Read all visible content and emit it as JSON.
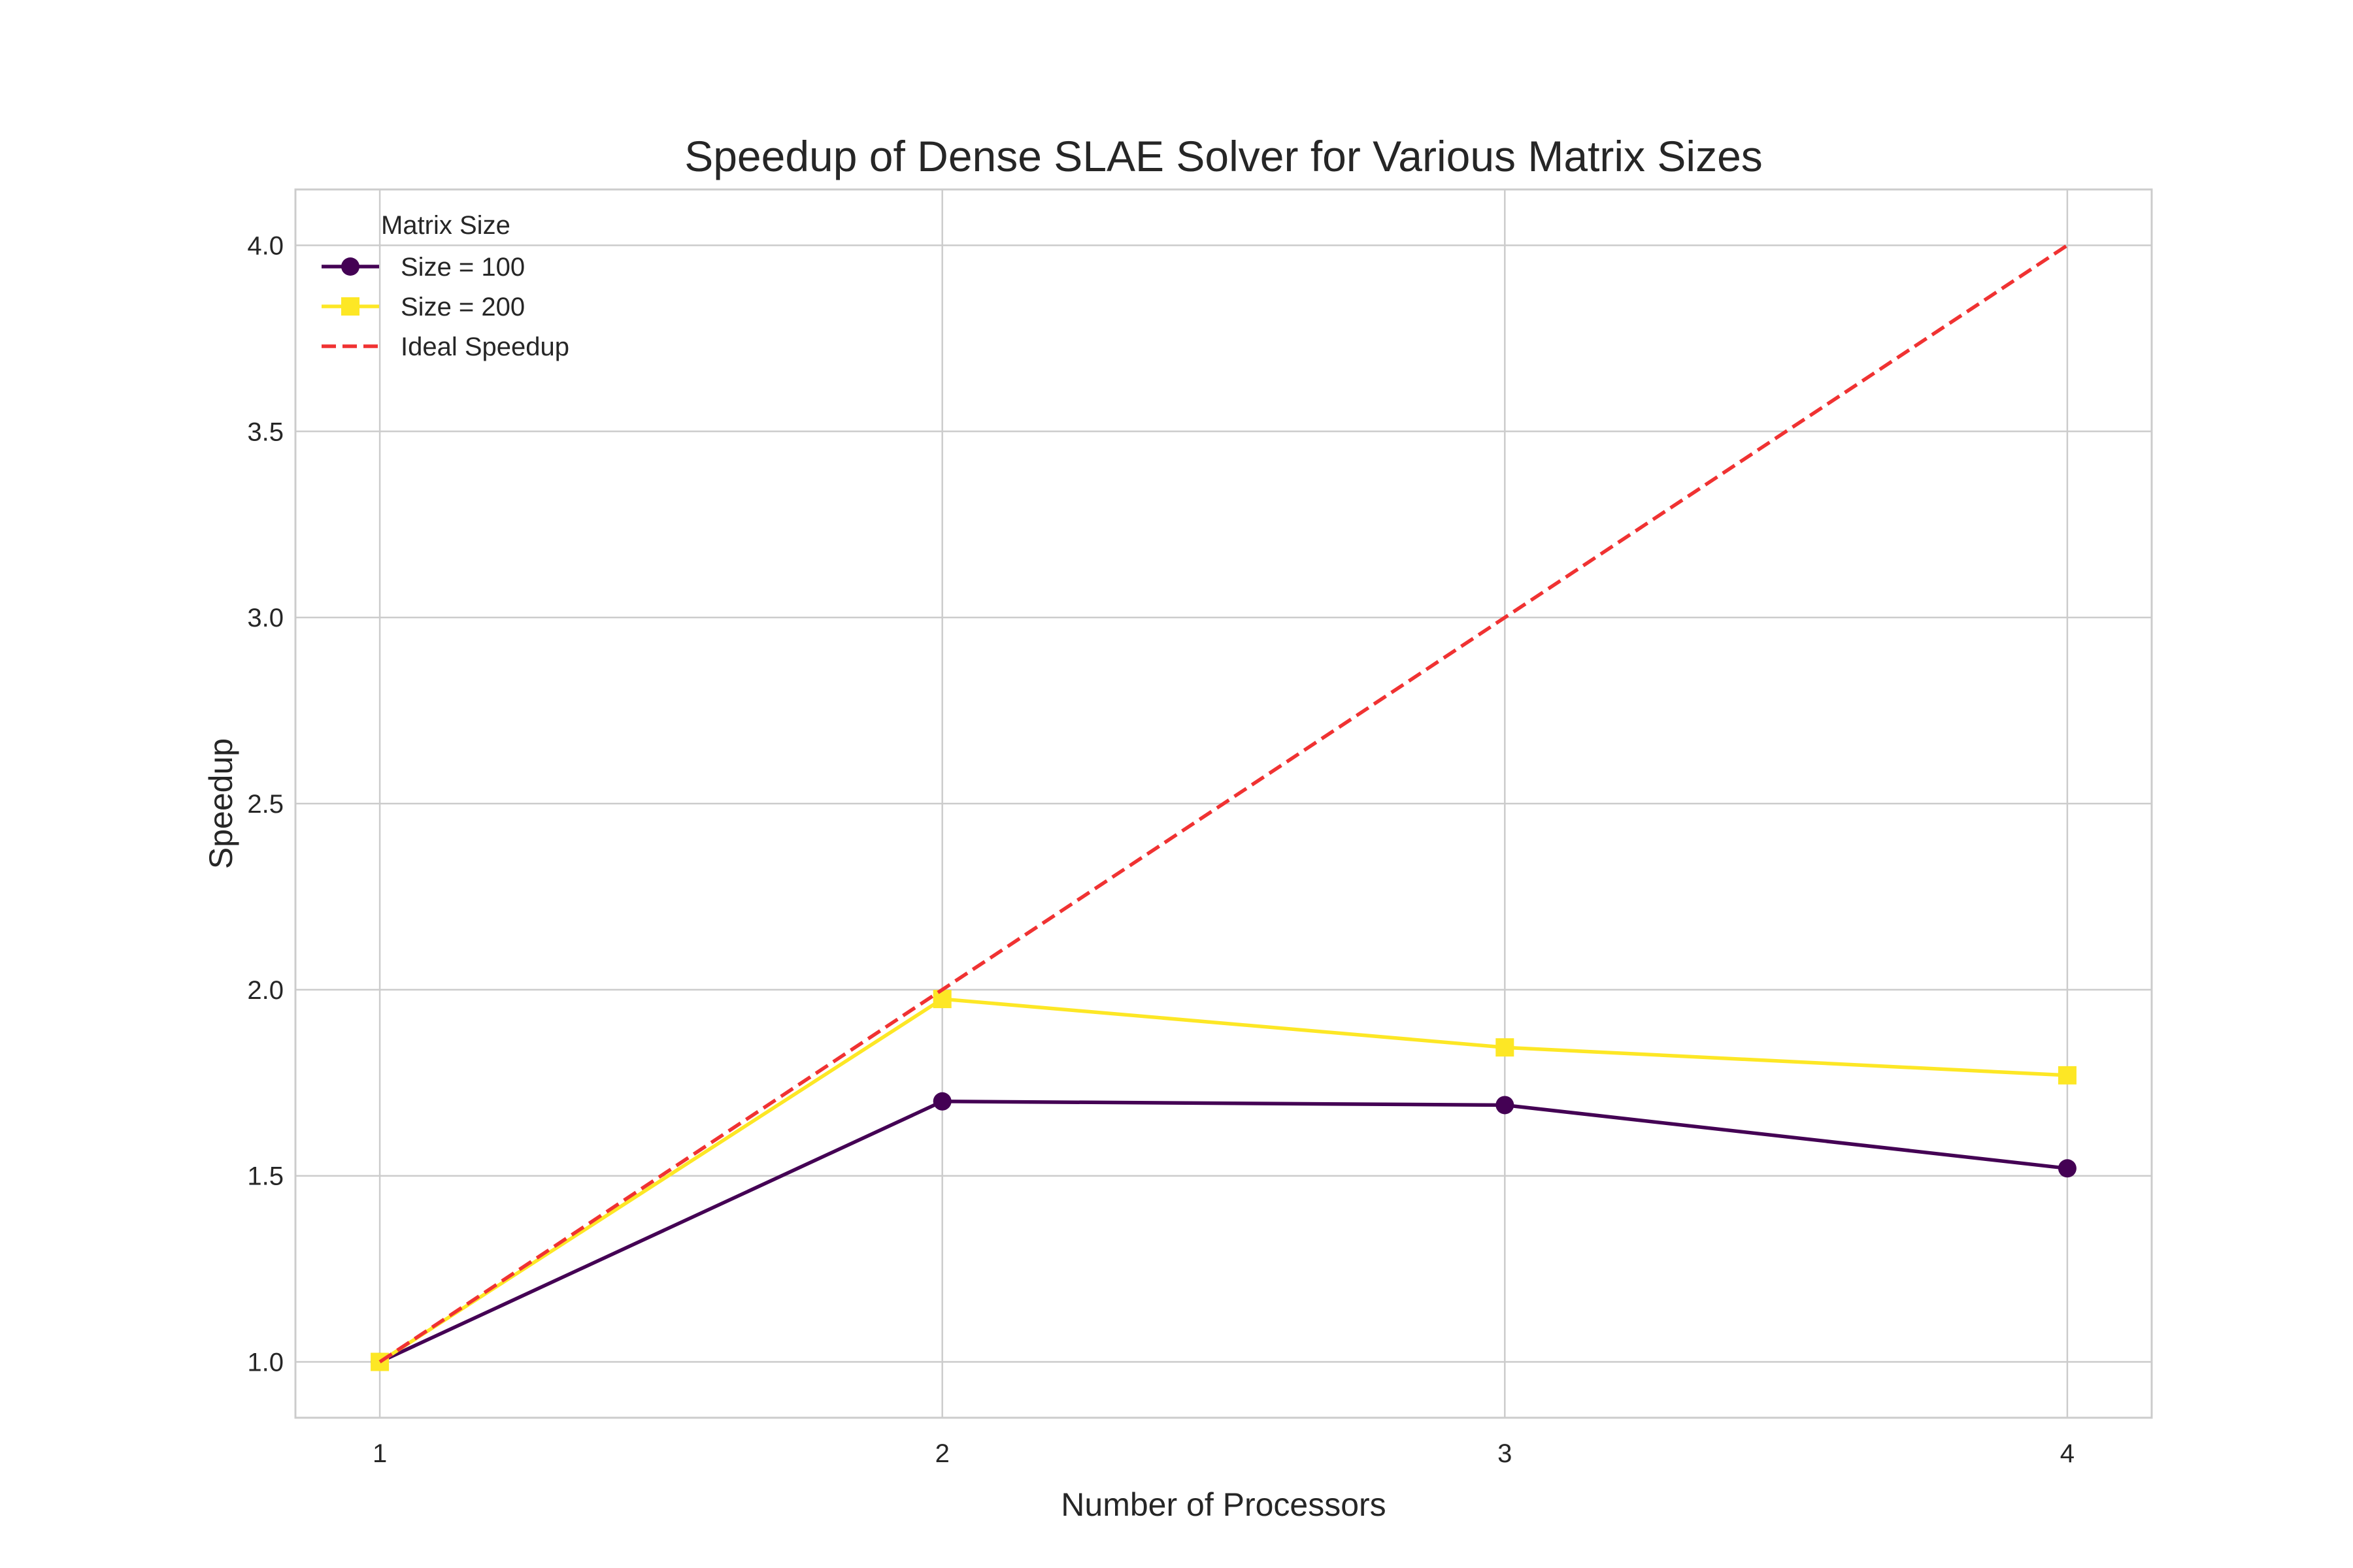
{
  "chart_data": {
    "type": "line",
    "title": "Speedup of Dense SLAE Solver for Various Matrix Sizes",
    "xlabel": "Number of Processors",
    "ylabel": "Speedup",
    "x": [
      1,
      2,
      3,
      4
    ],
    "x_ticks": [
      "1",
      "2",
      "3",
      "4"
    ],
    "y_ticks": [
      "1.0",
      "1.5",
      "2.0",
      "2.5",
      "3.0",
      "3.5",
      "4.0"
    ],
    "xlim": [
      0.85,
      4.15
    ],
    "ylim": [
      0.85,
      4.15
    ],
    "grid": true,
    "legend": {
      "title": "Matrix Size",
      "placement": "top-left"
    },
    "series": [
      {
        "name": "Size = 100",
        "values": [
          1.0,
          1.7,
          1.69,
          1.52
        ],
        "color": "#440154",
        "marker": "circle",
        "line_style": "solid"
      },
      {
        "name": "Size = 200",
        "values": [
          1.0,
          1.975,
          1.845,
          1.77
        ],
        "color": "#fde725",
        "marker": "square",
        "line_style": "solid"
      },
      {
        "name": "Ideal Speedup",
        "values": [
          1,
          2,
          3,
          4
        ],
        "color": "#f03232",
        "marker": "none",
        "line_style": "dashed"
      }
    ]
  }
}
